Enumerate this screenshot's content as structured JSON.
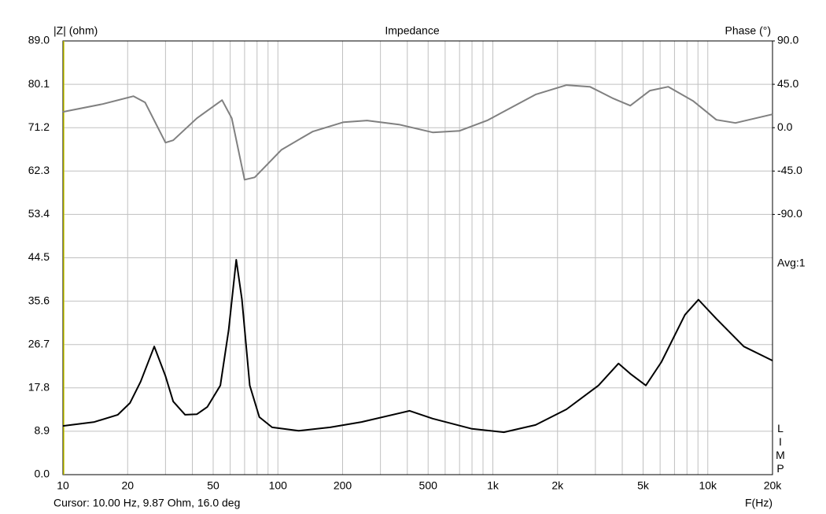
{
  "chart_data": {
    "type": "line",
    "title": "Impedance",
    "ylabel": "|Z| (ohm)",
    "y2label": "Phase (°)",
    "xlabel": "F(Hz)",
    "annotations": [
      "Avg:1",
      "LIMP"
    ],
    "cursor": "Cursor: 10.00 Hz, 9.87 Ohm, 16.0 deg",
    "xscale": "log",
    "grid": true,
    "xlim": [
      10,
      20000
    ],
    "xticks": [
      10,
      20,
      50,
      100,
      200,
      500,
      {
        "value": 1000,
        "label": "1k"
      },
      {
        "value": 2000,
        "label": "2k"
      },
      {
        "value": 5000,
        "label": "5k"
      },
      {
        "value": 10000,
        "label": "10k"
      },
      {
        "value": 20000,
        "label": "20k"
      }
    ],
    "xminorticks": [
      30,
      40,
      60,
      70,
      80,
      90,
      300,
      400,
      600,
      700,
      800,
      900,
      3000,
      4000,
      6000,
      7000,
      8000,
      9000
    ],
    "ylim": [
      0,
      89
    ],
    "yticks": [
      {
        "value": 0,
        "label": "0.0"
      },
      8.9,
      17.8,
      26.7,
      35.6,
      44.5,
      53.4,
      62.3,
      71.2,
      80.1,
      {
        "value": 89,
        "label": "89.0"
      }
    ],
    "y2lim": [
      -360,
      90
    ],
    "y2ticks": [
      {
        "value": 90,
        "label": "90.0"
      },
      {
        "value": 45,
        "label": "45.0"
      },
      {
        "value": 0,
        "label": "0.0"
      },
      {
        "value": -45,
        "label": "-45.0"
      },
      {
        "value": -90,
        "label": "-90.0"
      }
    ],
    "series": [
      {
        "color": "#000000",
        "x": [
          10,
          14,
          18,
          20.5,
          23,
          26.6,
          30,
          32.6,
          37,
          42,
          47,
          54,
          59,
          64,
          68,
          74,
          82,
          94,
          125,
          175,
          245,
          410,
          525,
          800,
          1125,
          1580,
          2200,
          3100,
          3840,
          4360,
          5150,
          6080,
          7830,
          9040,
          10960,
          14700,
          20000
        ],
        "values": [
          10.0,
          10.8,
          12.3,
          14.7,
          19.1,
          26.3,
          20.2,
          15.0,
          12.3,
          12.4,
          13.9,
          18.3,
          29.6,
          44.1,
          36.0,
          18.3,
          11.8,
          9.7,
          9.0,
          9.7,
          10.8,
          13.1,
          11.5,
          9.4,
          8.7,
          10.2,
          13.4,
          18.3,
          22.8,
          20.7,
          18.3,
          23.1,
          32.8,
          35.9,
          32.0,
          26.3,
          23.4
        ]
      },
      {
        "color": "#808080",
        "axis": "y2",
        "x": [
          10,
          15.3,
          21.3,
          24.1,
          30,
          32.6,
          42,
          55,
          61,
          70,
          78,
          104,
          145,
          202,
          260,
          366,
          525,
          700,
          940,
          1580,
          2200,
          2830,
          3630,
          4360,
          5380,
          6550,
          8540,
          10960,
          13450,
          20000
        ],
        "values": [
          16.4,
          24.5,
          32.7,
          26.2,
          -15.5,
          -13.1,
          9.8,
          28.6,
          9.8,
          -54,
          -51.5,
          -22.9,
          -4.1,
          5.7,
          7.4,
          3.3,
          -4.9,
          -3.3,
          7.4,
          34.4,
          44.2,
          42.5,
          30.3,
          22.9,
          38.5,
          42.5,
          27.8,
          8.2,
          4.9,
          13.9
        ]
      }
    ]
  }
}
